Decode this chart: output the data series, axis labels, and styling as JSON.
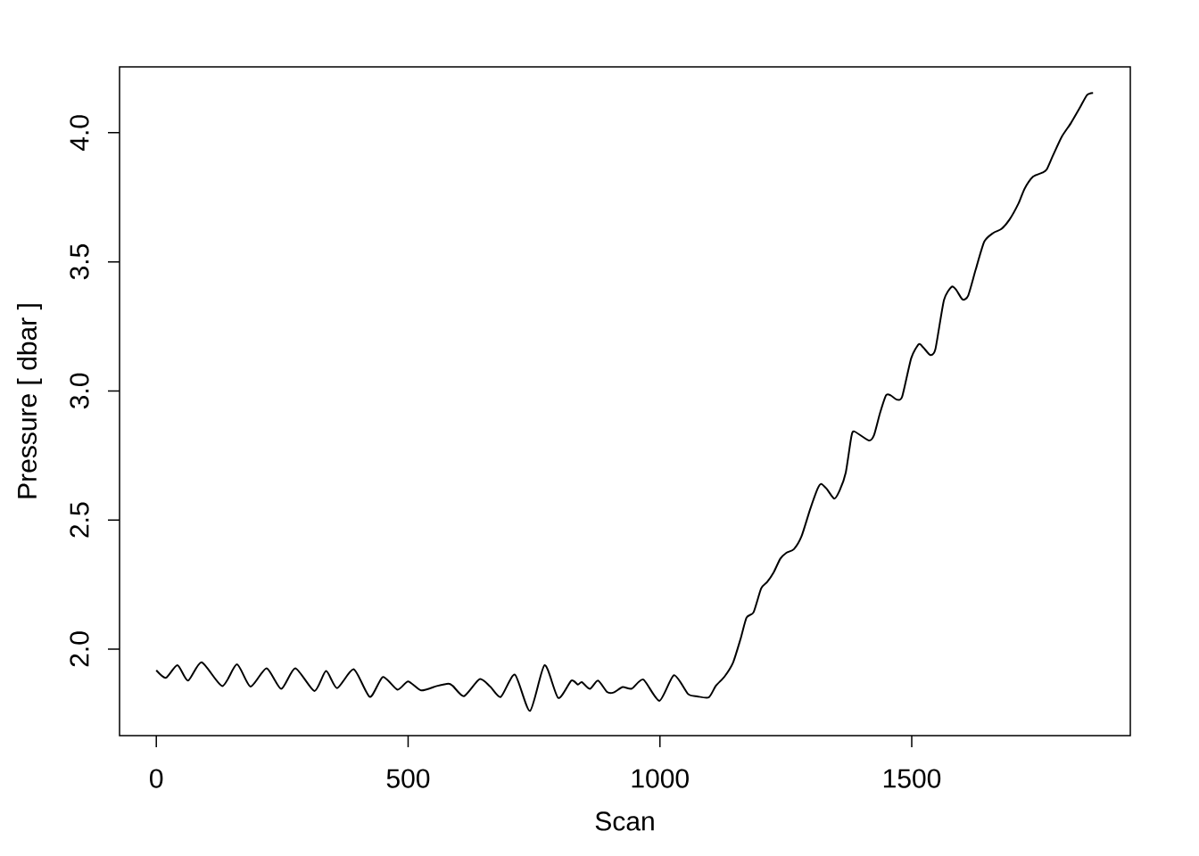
{
  "chart_data": {
    "type": "line",
    "xlabel": "Scan",
    "ylabel": "Pressure [ dbar ]",
    "color": "#000000",
    "line_style": "solid",
    "x": [
      0,
      19,
      42,
      63,
      90,
      131,
      160,
      187,
      219,
      248,
      276,
      314,
      337,
      359,
      392,
      424,
      450,
      479,
      500,
      526,
      557,
      580,
      589,
      611,
      642,
      663,
      684,
      712,
      742,
      771,
      798,
      824,
      837,
      845,
      861,
      877,
      895,
      908,
      926,
      944,
      967,
      999,
      1028,
      1056,
      1074,
      1097,
      1111,
      1128,
      1145,
      1160,
      1172,
      1186,
      1201,
      1213,
      1226,
      1239,
      1251,
      1266,
      1281,
      1298,
      1313,
      1320,
      1331,
      1346,
      1357,
      1369,
      1380,
      1386,
      1415,
      1425,
      1437,
      1449,
      1458,
      1471,
      1481,
      1499,
      1514,
      1523,
      1537,
      1547,
      1564,
      1579,
      1588,
      1601,
      1612,
      1627,
      1644,
      1662,
      1678,
      1694,
      1712,
      1724,
      1741,
      1759,
      1768,
      1780,
      1798,
      1816,
      1833,
      1848,
      1860
    ],
    "values": [
      1.918,
      1.889,
      1.938,
      1.878,
      1.949,
      1.857,
      1.941,
      1.855,
      1.926,
      1.846,
      1.926,
      1.838,
      1.915,
      1.849,
      1.922,
      1.815,
      1.892,
      1.843,
      1.875,
      1.84,
      1.857,
      1.866,
      1.857,
      1.818,
      1.884,
      1.855,
      1.815,
      1.901,
      1.761,
      1.938,
      1.811,
      1.878,
      1.863,
      1.872,
      1.846,
      1.878,
      1.834,
      1.832,
      1.853,
      1.847,
      1.882,
      1.8,
      1.899,
      1.826,
      1.817,
      1.813,
      1.858,
      1.893,
      1.947,
      2.039,
      2.122,
      2.143,
      2.235,
      2.26,
      2.298,
      2.35,
      2.373,
      2.387,
      2.436,
      2.54,
      2.621,
      2.64,
      2.621,
      2.583,
      2.615,
      2.684,
      2.822,
      2.843,
      2.808,
      2.828,
      2.914,
      2.983,
      2.983,
      2.966,
      2.978,
      3.127,
      3.181,
      3.168,
      3.139,
      3.162,
      3.352,
      3.403,
      3.392,
      3.354,
      3.369,
      3.47,
      3.578,
      3.612,
      3.627,
      3.663,
      3.726,
      3.783,
      3.83,
      3.845,
      3.858,
      3.91,
      3.985,
      4.037,
      4.094,
      4.146,
      4.154
    ],
    "xlim": [
      -73,
      1934
    ],
    "ylim": [
      1.665,
      4.255
    ],
    "xticks": [
      0,
      500,
      1000,
      1500
    ],
    "yticks": [
      {
        "value": 2,
        "label": "2.0"
      },
      {
        "value": 2.5,
        "label": "2.5"
      },
      {
        "value": 3,
        "label": "3.0"
      },
      {
        "value": 3.5,
        "label": "3.5"
      },
      {
        "value": 4,
        "label": "4.0"
      }
    ]
  }
}
